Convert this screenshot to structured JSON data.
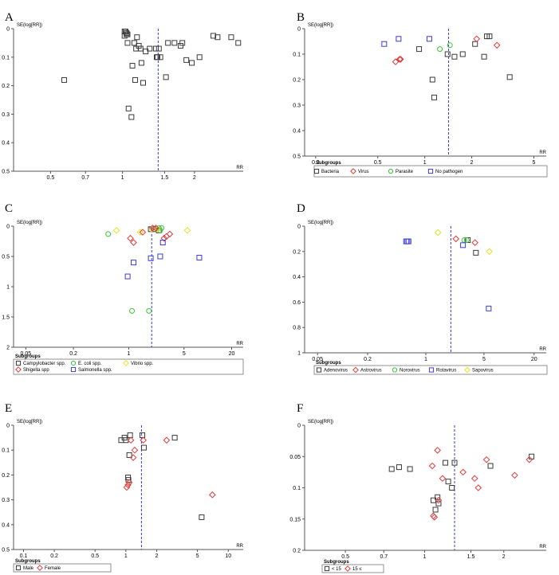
{
  "chart_data": [
    {
      "panel": "A",
      "type": "scatter",
      "x_scale": "log",
      "title": "",
      "ylabel": "SE(log[RR])",
      "xlabel": "RR",
      "xlim": [
        0.35,
        3.2
      ],
      "ylim": [
        0,
        0.5
      ],
      "xticks": [
        0.5,
        0.7,
        1,
        1.5,
        2
      ],
      "xtick_labels": [
        "0.5",
        "0.7",
        "1",
        "1.5",
        "2"
      ],
      "yticks": [
        0,
        0.1,
        0.2,
        0.3,
        0.4,
        0.5
      ],
      "ytick_labels": [
        "0",
        "0.1",
        "0.2",
        "0.3",
        "0.4",
        "0.5"
      ],
      "pooled": 1.41,
      "subgroups_title": "",
      "subgroups": [],
      "series": [
        {
          "name": "",
          "marker": "square",
          "color": "#3a3a3a",
          "points": [
            [
              0.57,
              0.18
            ],
            [
              1.02,
              0.01
            ],
            [
              1.03,
              0.01
            ],
            [
              1.04,
              0.015
            ],
            [
              1.02,
              0.025
            ],
            [
              1.04,
              0.02
            ],
            [
              1.05,
              0.02
            ],
            [
              1.05,
              0.05
            ],
            [
              1.06,
              0.28
            ],
            [
              1.09,
              0.31
            ],
            [
              1.1,
              0.13
            ],
            [
              1.12,
              0.05
            ],
            [
              1.13,
              0.18
            ],
            [
              1.14,
              0.07
            ],
            [
              1.15,
              0.03
            ],
            [
              1.17,
              0.06
            ],
            [
              1.19,
              0.07
            ],
            [
              1.2,
              0.12
            ],
            [
              1.22,
              0.19
            ],
            [
              1.25,
              0.08
            ],
            [
              1.3,
              0.07
            ],
            [
              1.38,
              0.07
            ],
            [
              1.39,
              0.1
            ],
            [
              1.4,
              0.1
            ],
            [
              1.42,
              0.07
            ],
            [
              1.44,
              0.1
            ],
            [
              1.52,
              0.17
            ],
            [
              1.55,
              0.05
            ],
            [
              1.65,
              0.05
            ],
            [
              1.75,
              0.06
            ],
            [
              1.78,
              0.05
            ],
            [
              1.85,
              0.11
            ],
            [
              1.95,
              0.12
            ],
            [
              2.1,
              0.1
            ],
            [
              2.4,
              0.025
            ],
            [
              2.5,
              0.03
            ],
            [
              2.85,
              0.03
            ],
            [
              3.05,
              0.05
            ]
          ]
        }
      ]
    },
    {
      "panel": "B",
      "type": "scatter",
      "x_scale": "log",
      "title": "",
      "ylabel": "SE(log[RR])",
      "xlabel": "RR",
      "xlim": [
        0.17,
        6.0
      ],
      "ylim": [
        0,
        0.5
      ],
      "xticks": [
        0.2,
        0.5,
        1,
        2,
        5
      ],
      "xtick_labels": [
        "0.2",
        "0.5",
        "1",
        "2",
        "5"
      ],
      "yticks": [
        0,
        0.1,
        0.2,
        0.3,
        0.4,
        0.5
      ],
      "ytick_labels": [
        "0",
        "0.1",
        "0.2",
        "0.3",
        "0.4",
        "0.5"
      ],
      "pooled": 1.42,
      "subgroups_title": "Subgroups",
      "subgroups": [
        {
          "name": "Bacteria",
          "marker": "square",
          "color": "#3a3a3a"
        },
        {
          "name": "Virus",
          "marker": "diamond",
          "color": "#e03c3c"
        },
        {
          "name": "Parasite",
          "marker": "circle",
          "color": "#3cc43c"
        },
        {
          "name": "No pathogen",
          "marker": "square",
          "color": "#3c3cd8"
        }
      ],
      "series": [
        {
          "name": "Bacteria",
          "marker": "square",
          "color": "#3a3a3a",
          "points": [
            [
              0.92,
              0.08
            ],
            [
              1.12,
              0.2
            ],
            [
              1.15,
              0.27
            ],
            [
              1.4,
              0.1
            ],
            [
              1.55,
              0.11
            ],
            [
              1.75,
              0.1
            ],
            [
              2.1,
              0.06
            ],
            [
              2.4,
              0.11
            ],
            [
              2.5,
              0.03
            ],
            [
              2.6,
              0.03
            ],
            [
              3.5,
              0.19
            ]
          ]
        },
        {
          "name": "Virus",
          "marker": "diamond",
          "color": "#e03c3c",
          "points": [
            [
              0.65,
              0.13
            ],
            [
              0.69,
              0.12
            ],
            [
              0.7,
              0.12
            ],
            [
              2.15,
              0.04
            ],
            [
              2.9,
              0.065
            ]
          ]
        },
        {
          "name": "Parasite",
          "marker": "circle",
          "color": "#3cc43c",
          "points": [
            [
              1.25,
              0.08
            ],
            [
              1.45,
              0.065
            ]
          ]
        },
        {
          "name": "No pathogen",
          "marker": "square",
          "color": "#3c3cd8",
          "points": [
            [
              0.55,
              0.06
            ],
            [
              0.68,
              0.04
            ],
            [
              1.07,
              0.04
            ]
          ]
        }
      ]
    },
    {
      "panel": "C",
      "type": "scatter",
      "x_scale": "log",
      "title": "",
      "ylabel": "SE(log[RR])",
      "xlabel": "RR",
      "xlim": [
        0.035,
        28
      ],
      "ylim": [
        0,
        2
      ],
      "xticks": [
        0.05,
        0.2,
        1,
        5,
        20
      ],
      "xtick_labels": [
        "0.05",
        "0.2",
        "1",
        "5",
        "20"
      ],
      "yticks": [
        0,
        0.5,
        1,
        1.5,
        2
      ],
      "ytick_labels": [
        "0",
        "0.5",
        "1",
        "1.5",
        "2"
      ],
      "pooled": 1.95,
      "subgroups_title": "Subgroups",
      "subgroups": [
        {
          "name": "Campylobacter spp.",
          "marker": "square",
          "color": "#3a3a3a"
        },
        {
          "name": "E. coli spp.",
          "marker": "circle",
          "color": "#3cc43c"
        },
        {
          "name": "Vibrio spp.",
          "marker": "diamond",
          "color": "#e8e020"
        },
        {
          "name": "Shigella spp",
          "marker": "diamond",
          "color": "#e03c3c"
        },
        {
          "name": "Salmonella spp.",
          "marker": "square",
          "color": "#3c3cd8"
        }
      ],
      "series": [
        {
          "name": "Campylobacter spp.",
          "marker": "square",
          "color": "#3a3a3a",
          "points": [
            [
              1.9,
              0.05
            ],
            [
              2.1,
              0.05
            ],
            [
              2.4,
              0.07
            ]
          ]
        },
        {
          "name": "E. coli spp.",
          "marker": "circle",
          "color": "#3cc43c",
          "points": [
            [
              0.55,
              0.13
            ],
            [
              1.1,
              1.4
            ],
            [
              1.8,
              1.4
            ],
            [
              2.4,
              0.03
            ],
            [
              2.5,
              0.07
            ],
            [
              2.6,
              0.03
            ]
          ]
        },
        {
          "name": "Vibrio spp.",
          "marker": "diamond",
          "color": "#e8e020",
          "points": [
            [
              0.7,
              0.07
            ],
            [
              1.4,
              0.1
            ],
            [
              1.95,
              0.05
            ],
            [
              2.3,
              0.05
            ],
            [
              5.5,
              0.07
            ]
          ]
        },
        {
          "name": "Shigella spp",
          "marker": "diamond",
          "color": "#e03c3c",
          "points": [
            [
              1.05,
              0.2
            ],
            [
              1.15,
              0.27
            ],
            [
              1.5,
              0.1
            ],
            [
              2.0,
              0.03
            ],
            [
              2.2,
              0.03
            ],
            [
              2.8,
              0.2
            ],
            [
              3.0,
              0.17
            ],
            [
              3.3,
              0.13
            ]
          ]
        },
        {
          "name": "Salmonella spp.",
          "marker": "square",
          "color": "#3c3cd8",
          "points": [
            [
              0.97,
              0.83
            ],
            [
              1.15,
              0.6
            ],
            [
              1.9,
              0.53
            ],
            [
              2.5,
              0.5
            ],
            [
              2.7,
              0.27
            ],
            [
              7.8,
              0.52
            ]
          ]
        }
      ]
    },
    {
      "panel": "D",
      "type": "scatter",
      "x_scale": "log",
      "title": "",
      "ylabel": "SE(log[RR])",
      "xlabel": "RR",
      "xlim": [
        0.035,
        28
      ],
      "ylim": [
        0,
        1
      ],
      "xticks": [
        0.05,
        0.2,
        1,
        5,
        20
      ],
      "xtick_labels": [
        "0.05",
        "0.2",
        "1",
        "5",
        "20"
      ],
      "yticks": [
        0,
        0.2,
        0.4,
        0.6,
        0.8,
        1
      ],
      "ytick_labels": [
        "0",
        "0.2",
        "0.4",
        "0.6",
        "0.8",
        "1"
      ],
      "pooled": 2.0,
      "subgroups_title": "Subgroups",
      "subgroups": [
        {
          "name": "Adenovirus",
          "marker": "square",
          "color": "#3a3a3a"
        },
        {
          "name": "Astrovirus",
          "marker": "diamond",
          "color": "#e03c3c"
        },
        {
          "name": "Norovirus",
          "marker": "circle",
          "color": "#3cc43c"
        },
        {
          "name": "Rotavirus",
          "marker": "square",
          "color": "#3c3cd8"
        },
        {
          "name": "Sapovirus",
          "marker": "diamond",
          "color": "#e8e020"
        }
      ],
      "series": [
        {
          "name": "Adenovirus",
          "marker": "square",
          "color": "#3a3a3a",
          "points": [
            [
              3.2,
              0.11
            ],
            [
              4.0,
              0.21
            ]
          ]
        },
        {
          "name": "Astrovirus",
          "marker": "diamond",
          "color": "#e03c3c",
          "points": [
            [
              2.3,
              0.1
            ],
            [
              3.9,
              0.13
            ]
          ]
        },
        {
          "name": "Norovirus",
          "marker": "circle",
          "color": "#3cc43c",
          "points": [
            [
              2.9,
              0.11
            ],
            [
              3.1,
              0.11
            ]
          ]
        },
        {
          "name": "Rotavirus",
          "marker": "square",
          "color": "#3c3cd8",
          "points": [
            [
              0.58,
              0.12
            ],
            [
              0.6,
              0.12
            ],
            [
              0.62,
              0.12
            ],
            [
              2.8,
              0.15
            ],
            [
              5.7,
              0.65
            ]
          ]
        },
        {
          "name": "Sapovirus",
          "marker": "diamond",
          "color": "#e8e020",
          "points": [
            [
              1.4,
              0.05
            ],
            [
              5.8,
              0.2
            ]
          ]
        }
      ]
    },
    {
      "panel": "E",
      "type": "scatter",
      "x_scale": "log",
      "title": "",
      "ylabel": "SE(log[RR])",
      "xlabel": "RR",
      "xlim": [
        0.08,
        14
      ],
      "ylim": [
        0,
        0.5
      ],
      "xticks": [
        0.1,
        0.2,
        0.5,
        1,
        2,
        5,
        10
      ],
      "xtick_labels": [
        "0.1",
        "0.2",
        "0.5",
        "1",
        "2",
        "5",
        "10"
      ],
      "yticks": [
        0,
        0.1,
        0.2,
        0.3,
        0.4,
        0.5
      ],
      "ytick_labels": [
        "0",
        "0.1",
        "0.2",
        "0.3",
        "0.4",
        "0.5"
      ],
      "pooled": 1.42,
      "subgroups_title": "Subgroups",
      "subgroups": [
        {
          "name": "Male",
          "marker": "square",
          "color": "#3a3a3a"
        },
        {
          "name": "Female",
          "marker": "diamond",
          "color": "#e03c3c"
        }
      ],
      "series": [
        {
          "name": "Male",
          "marker": "square",
          "color": "#3a3a3a",
          "points": [
            [
              0.9,
              0.06
            ],
            [
              0.97,
              0.05
            ],
            [
              1.0,
              0.06
            ],
            [
              1.05,
              0.21
            ],
            [
              1.06,
              0.22
            ],
            [
              1.08,
              0.12
            ],
            [
              1.1,
              0.04
            ],
            [
              1.45,
              0.04
            ],
            [
              1.5,
              0.09
            ],
            [
              3.0,
              0.05
            ],
            [
              5.5,
              0.37
            ]
          ]
        },
        {
          "name": "Female",
          "marker": "diamond",
          "color": "#e03c3c",
          "points": [
            [
              1.02,
              0.25
            ],
            [
              1.05,
              0.24
            ],
            [
              1.08,
              0.23
            ],
            [
              1.12,
              0.06
            ],
            [
              1.18,
              0.13
            ],
            [
              1.22,
              0.1
            ],
            [
              1.48,
              0.06
            ],
            [
              2.5,
              0.06
            ],
            [
              7.0,
              0.28
            ]
          ]
        }
      ]
    },
    {
      "panel": "F",
      "type": "scatter",
      "x_scale": "log",
      "title": "",
      "ylabel": "SE(log[RR])",
      "xlabel": "RR",
      "xlim": [
        0.35,
        2.9
      ],
      "ylim": [
        0,
        0.2
      ],
      "xticks": [
        0.5,
        0.7,
        1,
        1.5,
        2
      ],
      "xtick_labels": [
        "0.5",
        "0.7",
        "1",
        "1.5",
        "2"
      ],
      "yticks": [
        0,
        0.05,
        0.1,
        0.15,
        0.2
      ],
      "ytick_labels": [
        "0",
        "0.05",
        "0.1",
        "0.15",
        "0.2"
      ],
      "pooled": 1.3,
      "subgroups_title": "Subgroups",
      "subgroups": [
        {
          "name": "< 15",
          "marker": "square",
          "color": "#3a3a3a"
        },
        {
          "name": "15 ≤",
          "marker": "diamond",
          "color": "#e03c3c"
        }
      ],
      "series": [
        {
          "name": "< 15",
          "marker": "square",
          "color": "#3a3a3a",
          "points": [
            [
              0.75,
              0.07
            ],
            [
              0.8,
              0.067
            ],
            [
              0.88,
              0.07
            ],
            [
              1.08,
              0.12
            ],
            [
              1.12,
              0.115
            ],
            [
              1.13,
              0.125
            ],
            [
              1.1,
              0.135
            ],
            [
              1.2,
              0.06
            ],
            [
              1.23,
              0.09
            ],
            [
              1.27,
              0.1
            ],
            [
              1.3,
              0.06
            ],
            [
              1.78,
              0.065
            ],
            [
              2.55,
              0.05
            ]
          ]
        },
        {
          "name": "15 ≤",
          "marker": "diamond",
          "color": "#e03c3c",
          "points": [
            [
              1.07,
              0.065
            ],
            [
              1.08,
              0.145
            ],
            [
              1.09,
              0.147
            ],
            [
              1.12,
              0.04
            ],
            [
              1.13,
              0.12
            ],
            [
              1.17,
              0.085
            ],
            [
              1.4,
              0.075
            ],
            [
              1.55,
              0.085
            ],
            [
              1.6,
              0.1
            ],
            [
              1.72,
              0.055
            ],
            [
              2.2,
              0.08
            ],
            [
              2.5,
              0.055
            ]
          ]
        }
      ]
    }
  ]
}
